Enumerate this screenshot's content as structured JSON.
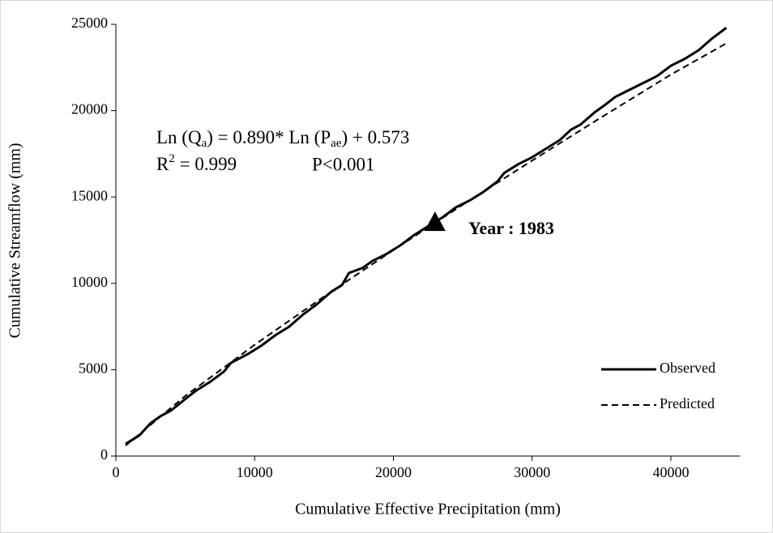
{
  "chart_data": {
    "type": "line",
    "x_label": "Cumulative Effective Precipitation (mm)",
    "y_label": "Cumulative Streamflow (mm)",
    "xlim": [
      0,
      45000
    ],
    "xticks": [
      0,
      10000,
      20000,
      30000,
      40000
    ],
    "ylim": [
      0,
      25000
    ],
    "yticks": [
      0,
      5000,
      10000,
      15000,
      20000,
      25000
    ],
    "grid": false,
    "legend": "lower right",
    "series": [
      {
        "name": "Observed",
        "color": "#000000",
        "dashed": false,
        "x": [
          700,
          1700,
          2500,
          3200,
          4000,
          5000,
          5800,
          6800,
          7800,
          8300,
          9500,
          10500,
          11500,
          12500,
          13500,
          14500,
          15500,
          16300,
          16800,
          17800,
          18500,
          19500,
          20500,
          21500,
          22500,
          23500,
          24500,
          25500,
          26500,
          27500,
          28000,
          29000,
          30000,
          31000,
          32000,
          32800,
          33500,
          34500,
          35200,
          36000,
          37000,
          38000,
          39000,
          40000,
          41000,
          42000,
          43000,
          44000
        ],
        "values": [
          700,
          1200,
          1900,
          2300,
          2650,
          3300,
          3800,
          4300,
          4900,
          5400,
          5900,
          6400,
          7000,
          7500,
          8200,
          8800,
          9500,
          9900,
          10600,
          10900,
          11300,
          11700,
          12200,
          12800,
          13300,
          13800,
          14400,
          14800,
          15300,
          15900,
          16400,
          16900,
          17300,
          17800,
          18300,
          18900,
          19200,
          19900,
          20300,
          20800,
          21200,
          21600,
          22000,
          22600,
          23000,
          23500,
          24200,
          24800
        ]
      },
      {
        "name": "Predicted",
        "color": "#000000",
        "dashed": true,
        "x": [
          700,
          5000,
          10000,
          15000,
          20000,
          25000,
          30000,
          35000,
          40000,
          44000
        ],
        "values": [
          604,
          3477,
          6440,
          9236,
          11925,
          14550,
          17110,
          19620,
          22090,
          23900
        ]
      }
    ],
    "annotations": {
      "equation": [
        {
          "text": "Ln (Q"
        },
        {
          "text": "a",
          "sub": true
        },
        {
          "text": ") = 0.890* Ln (P"
        },
        {
          "text": "ae",
          "sub": true
        },
        {
          "text": ") + 0.573"
        }
      ],
      "r2": [
        {
          "text": "R"
        },
        {
          "text": "2",
          "sup": true
        },
        {
          "text": " = 0.999"
        }
      ],
      "p_value": "P<0.001",
      "marker": {
        "label": "Year : 1983",
        "x": 23000,
        "y": 13500
      }
    }
  }
}
